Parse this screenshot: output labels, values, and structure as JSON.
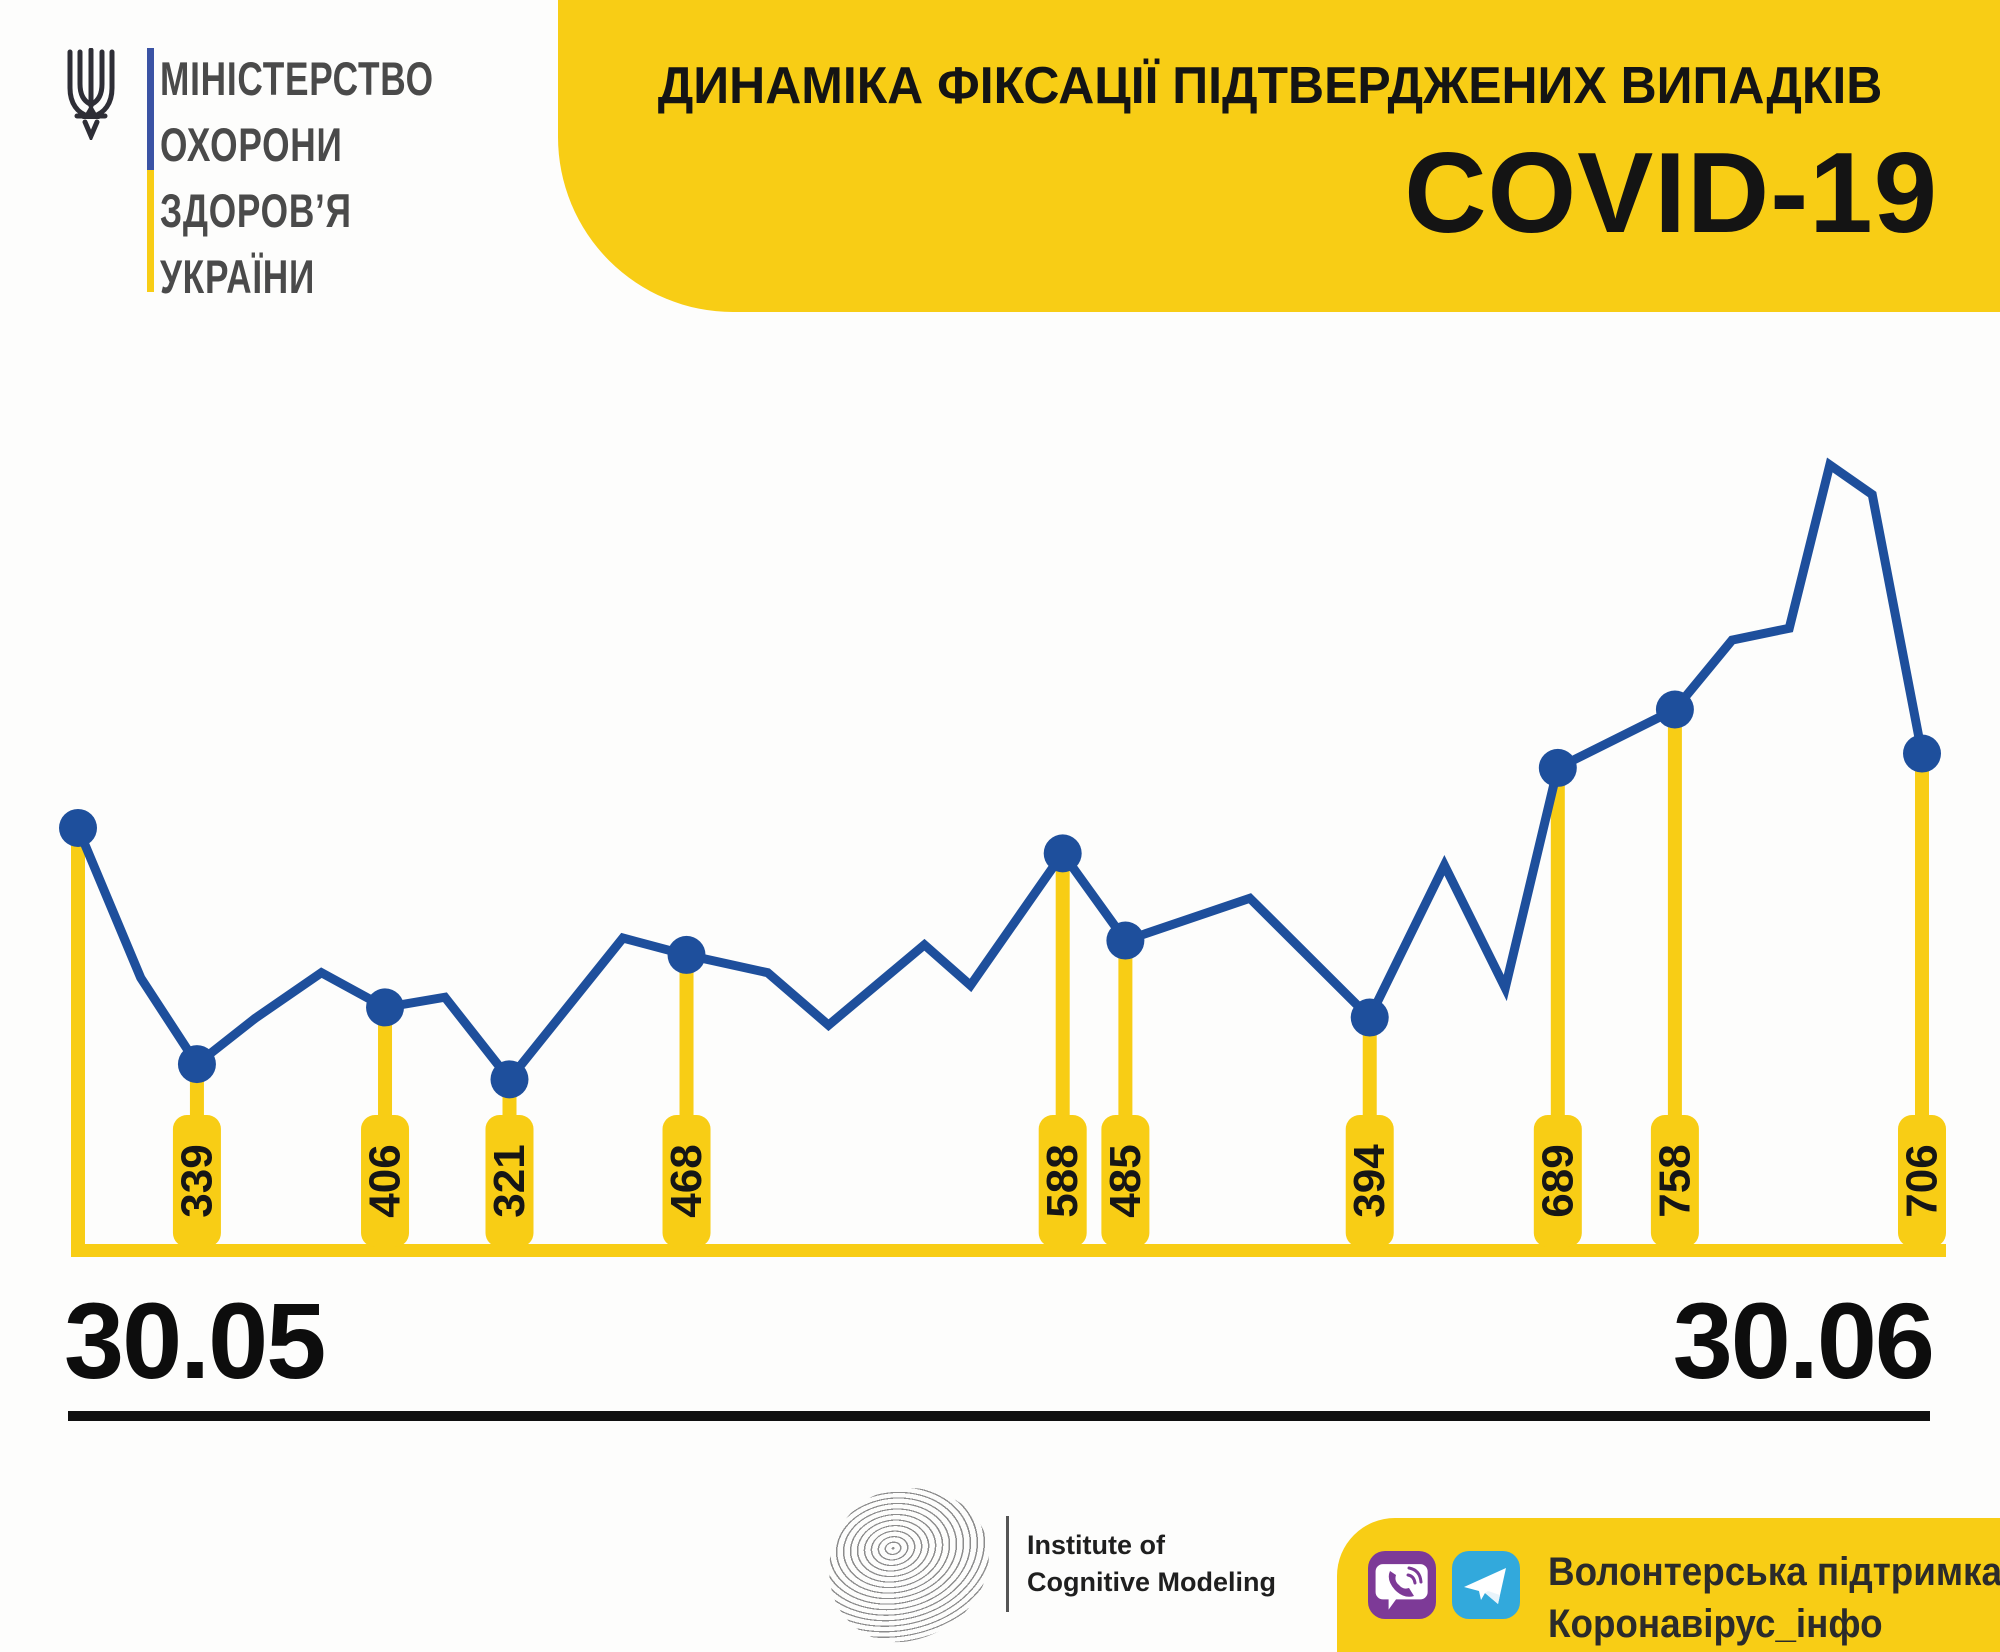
{
  "header": {
    "ministry": {
      "lines": [
        "МІНІСТЕРСТВО",
        "ОХОРОНИ",
        "ЗДОРОВ’Я",
        "УКРАЇНИ"
      ]
    },
    "banner": {
      "title": "ДИНАМІКА ФІКСАЦІЇ ПІДТВЕРДЖЕНИХ ВИПАДКІВ",
      "subtitle": "COVID-19"
    }
  },
  "chart_data": {
    "type": "line",
    "title": "Динаміка фіксації підтверджених випадків COVID-19",
    "xlabel": "",
    "ylabel": "",
    "x_axis": {
      "start_label": "30.05",
      "end_label": "30.06"
    },
    "ylim": [
      100,
      1100
    ],
    "grid": false,
    "legend": "none",
    "labeled_values": [
      339,
      406,
      321,
      468,
      588,
      485,
      394,
      689,
      758,
      706
    ],
    "note": "points without label text are unlabeled line vertices; their values are estimated from the drawing",
    "points": [
      {
        "pos": 0.0,
        "value": 618,
        "label": null,
        "dot": true
      },
      {
        "pos": 0.034,
        "value": 441,
        "label": null,
        "dot": false
      },
      {
        "pos": 0.0645,
        "value": 339,
        "label": "339",
        "dot": true
      },
      {
        "pos": 0.096,
        "value": 393,
        "label": null,
        "dot": false
      },
      {
        "pos": 0.132,
        "value": 447,
        "label": null,
        "dot": false
      },
      {
        "pos": 0.1665,
        "value": 406,
        "label": "406",
        "dot": true
      },
      {
        "pos": 0.199,
        "value": 418,
        "label": null,
        "dot": false
      },
      {
        "pos": 0.234,
        "value": 321,
        "label": "321",
        "dot": true
      },
      {
        "pos": 0.2955,
        "value": 488,
        "label": null,
        "dot": false
      },
      {
        "pos": 0.33,
        "value": 468,
        "label": "468",
        "dot": true
      },
      {
        "pos": 0.374,
        "value": 447,
        "label": null,
        "dot": false
      },
      {
        "pos": 0.407,
        "value": 385,
        "label": null,
        "dot": false
      },
      {
        "pos": 0.459,
        "value": 480,
        "label": null,
        "dot": false
      },
      {
        "pos": 0.484,
        "value": 432,
        "label": null,
        "dot": false
      },
      {
        "pos": 0.534,
        "value": 588,
        "label": "588",
        "dot": true
      },
      {
        "pos": 0.568,
        "value": 485,
        "label": "485",
        "dot": true
      },
      {
        "pos": 0.6355,
        "value": 535,
        "label": null,
        "dot": false
      },
      {
        "pos": 0.7005,
        "value": 394,
        "label": "394",
        "dot": true
      },
      {
        "pos": 0.741,
        "value": 574,
        "label": null,
        "dot": false
      },
      {
        "pos": 0.774,
        "value": 429,
        "label": null,
        "dot": false
      },
      {
        "pos": 0.8025,
        "value": 689,
        "label": "689",
        "dot": true
      },
      {
        "pos": 0.866,
        "value": 758,
        "label": "758",
        "dot": true
      },
      {
        "pos": 0.897,
        "value": 840,
        "label": null,
        "dot": false
      },
      {
        "pos": 0.928,
        "value": 854,
        "label": null,
        "dot": false
      },
      {
        "pos": 0.95,
        "value": 1047,
        "label": null,
        "dot": false
      },
      {
        "pos": 0.973,
        "value": 1012,
        "label": null,
        "dot": false
      },
      {
        "pos": 1.0,
        "value": 706,
        "label": "706",
        "dot": true
      }
    ],
    "colors": {
      "line": "#1E4F9C",
      "marker": "#1E4F9C",
      "stem": "#F8CD15",
      "label_box": "#F8CD15",
      "label_text": "#161616"
    }
  },
  "axis": {
    "start_label": "30.05",
    "end_label": "30.06"
  },
  "footer": {
    "icm": {
      "line1": "Institute of",
      "line2": "Cognitive Modeling"
    },
    "support": {
      "line1": "Волонтерська підтримка:",
      "line2": "Коронавірус_інфо",
      "icons": [
        "viber-icon",
        "telegram-icon"
      ]
    }
  },
  "colors": {
    "accent_yellow": "#F8CD15",
    "accent_blue": "#1E4F9C",
    "flag_blue": "#3B53A4",
    "text_dark": "#141414",
    "ministry_text": "#4A4A4A",
    "viber_purple": "#7D3A97",
    "telegram_blue": "#32A9DC",
    "background": "#FDFDFC"
  }
}
